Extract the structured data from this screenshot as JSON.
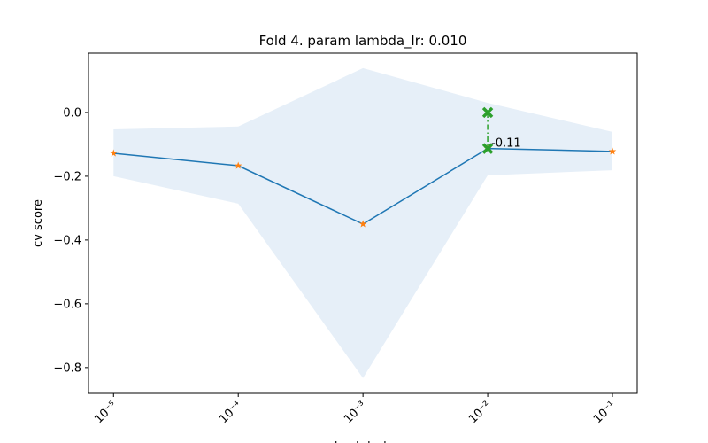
{
  "chart_data": {
    "type": "line",
    "title": "Fold 4. param lambda_lr: 0.010",
    "xlabel": "lambda_lr",
    "ylabel": "cv score",
    "xscale": "log",
    "x": [
      1e-05,
      0.0001,
      0.001,
      0.01,
      0.1
    ],
    "series": [
      {
        "color": "#1f77b4",
        "marker_color": "#ff7f0e",
        "values": [
          -0.128,
          -0.167,
          -0.35,
          -0.113,
          -0.122
        ],
        "lower": [
          -0.2,
          -0.286,
          -0.833,
          -0.197,
          -0.181
        ],
        "upper": [
          -0.053,
          -0.044,
          0.139,
          0.03,
          -0.061
        ],
        "band_color": "#e6eff8"
      }
    ],
    "highlight": {
      "color": "#2ca02c",
      "x": [
        0.01,
        0.01
      ],
      "values": [
        0,
        -0.113
      ]
    },
    "annotations": [
      {
        "text": "-0.11",
        "x": 0.01,
        "y": -0.113
      }
    ],
    "xlim": [
      6.3e-06,
      0.158
    ],
    "ylim": [
      -0.881,
      0.186
    ],
    "xticks": [
      {
        "value": 1e-05,
        "label": "10⁻⁵"
      },
      {
        "value": 0.0001,
        "label": "10⁻⁴"
      },
      {
        "value": 0.001,
        "label": "10⁻³"
      },
      {
        "value": 0.01,
        "label": "10⁻²"
      },
      {
        "value": 0.1,
        "label": "10⁻¹"
      }
    ],
    "yticks": [
      {
        "value": 0,
        "label": "0.0"
      },
      {
        "value": -0.2,
        "label": "−0.2"
      },
      {
        "value": -0.4,
        "label": "−0.4"
      },
      {
        "value": -0.6,
        "label": "−0.6"
      },
      {
        "value": -0.8,
        "label": "−0.8"
      }
    ]
  }
}
